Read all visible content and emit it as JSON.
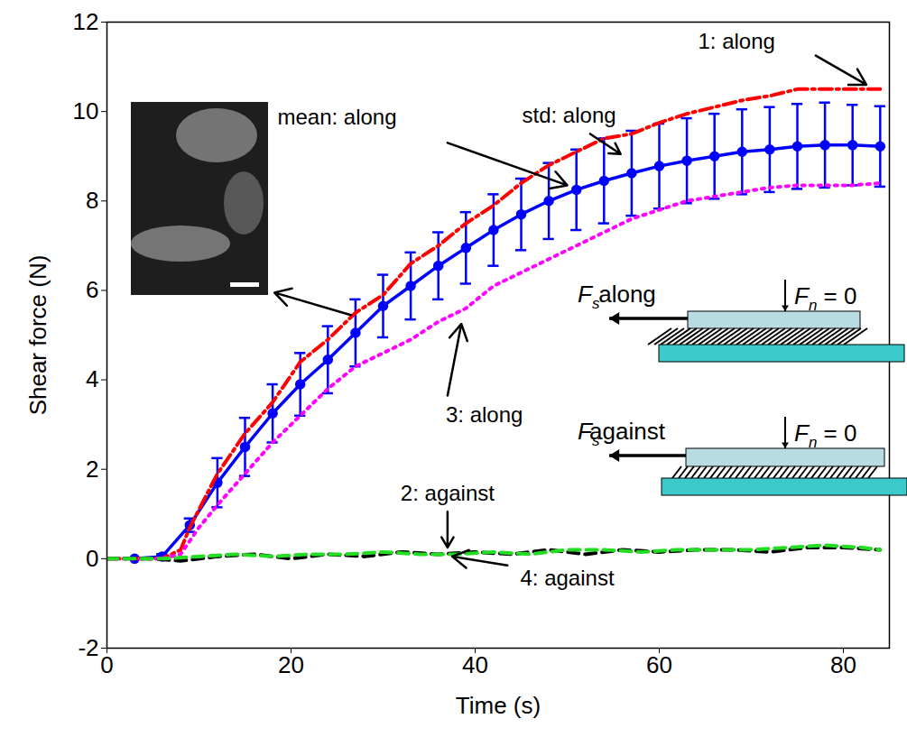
{
  "chart_data": {
    "type": "line",
    "x_label": "Time (s)",
    "y_label": "Shear force (N)",
    "xlim": [
      0,
      85
    ],
    "xticks": [
      0,
      20,
      40,
      60,
      80
    ],
    "ylim": [
      -2,
      12
    ],
    "yticks": [
      -2,
      0,
      2,
      4,
      6,
      8,
      10,
      12
    ],
    "grid": false,
    "series": [
      {
        "name": "mean: along",
        "color": "#0000ff",
        "line_style": "solid",
        "marker": "circle",
        "x": [
          3,
          6,
          9,
          12,
          15,
          18,
          21,
          24,
          27,
          30,
          33,
          36,
          39,
          42,
          45,
          48,
          51,
          54,
          57,
          60,
          63,
          66,
          69,
          72,
          75,
          78,
          81,
          84
        ],
        "values": [
          0,
          0.05,
          0.75,
          1.7,
          2.5,
          3.25,
          3.9,
          4.45,
          5.05,
          5.65,
          6.1,
          6.55,
          6.95,
          7.35,
          7.7,
          8.0,
          8.25,
          8.45,
          8.62,
          8.78,
          8.9,
          9.0,
          9.1,
          9.15,
          9.22,
          9.25,
          9.25,
          9.22
        ],
        "std": [
          0,
          0.05,
          0.15,
          0.55,
          0.65,
          0.65,
          0.7,
          0.75,
          0.75,
          0.7,
          0.75,
          0.75,
          0.8,
          0.8,
          0.8,
          0.85,
          0.9,
          0.95,
          0.95,
          0.95,
          0.95,
          0.95,
          0.95,
          0.95,
          0.95,
          0.95,
          0.9,
          0.9
        ]
      },
      {
        "name": "1: along",
        "color": "#ff0000",
        "line_style": "dashdot",
        "x": [
          0,
          3,
          6,
          8,
          9,
          12,
          15,
          18,
          21,
          24,
          27,
          30,
          33,
          36,
          39,
          42,
          45,
          48,
          51,
          54,
          57,
          60,
          63,
          66,
          69,
          72,
          75,
          78,
          81,
          84
        ],
        "values": [
          0,
          0,
          0,
          0.2,
          0.7,
          1.9,
          2.8,
          3.5,
          4.4,
          4.9,
          5.5,
          5.9,
          6.6,
          7.0,
          7.5,
          7.9,
          8.4,
          8.8,
          9.1,
          9.4,
          9.5,
          9.75,
          9.95,
          10.1,
          10.25,
          10.35,
          10.5,
          10.5,
          10.5,
          10.5
        ]
      },
      {
        "name": "3: along",
        "color": "#ff00ff",
        "line_style": "dotted",
        "x": [
          0,
          6,
          8,
          10,
          12,
          15,
          18,
          21,
          24,
          27,
          30,
          33,
          36,
          39,
          42,
          45,
          48,
          51,
          54,
          57,
          60,
          63,
          66,
          69,
          72,
          75,
          78,
          81,
          84
        ],
        "values": [
          0,
          0,
          0.1,
          0.7,
          1.2,
          1.9,
          2.6,
          3.2,
          3.8,
          4.3,
          4.6,
          4.9,
          5.3,
          5.6,
          6.1,
          6.4,
          6.7,
          7.0,
          7.3,
          7.6,
          7.8,
          8.0,
          8.1,
          8.2,
          8.3,
          8.35,
          8.35,
          8.35,
          8.4
        ]
      },
      {
        "name": "2: against",
        "color": "#000000",
        "line_style": "dashed",
        "x": [
          0,
          5,
          8,
          12,
          16,
          20,
          24,
          28,
          32,
          36,
          40,
          44,
          48,
          52,
          56,
          60,
          64,
          68,
          72,
          76,
          80,
          84
        ],
        "values": [
          0,
          0,
          -0.05,
          0.05,
          0.1,
          0,
          0.1,
          0.05,
          0.15,
          0.1,
          0.15,
          0.1,
          0.2,
          0.1,
          0.2,
          0.15,
          0.2,
          0.2,
          0.15,
          0.25,
          0.25,
          0.2
        ]
      },
      {
        "name": "4: against",
        "color": "#22dd22",
        "line_style": "dashed",
        "x": [
          0,
          6,
          10,
          14,
          18,
          22,
          26,
          30,
          34,
          38,
          42,
          46,
          50,
          54,
          58,
          62,
          66,
          70,
          74,
          78,
          82,
          84
        ],
        "values": [
          0,
          0,
          0.05,
          0.1,
          0.05,
          0.1,
          0.1,
          0.15,
          0.1,
          0.1,
          0.15,
          0.1,
          0.2,
          0.2,
          0.15,
          0.2,
          0.2,
          0.2,
          0.25,
          0.3,
          0.25,
          0.2
        ]
      }
    ],
    "annotations": [
      "std: along"
    ],
    "schematics": [
      {
        "label": "along",
        "shear": [
          "F",
          "s"
        ],
        "normal": [
          "F",
          "n",
          " = 0"
        ]
      },
      {
        "label": "against",
        "shear": [
          "F",
          "s"
        ],
        "normal": [
          "F",
          "n",
          " = 0"
        ]
      }
    ]
  }
}
